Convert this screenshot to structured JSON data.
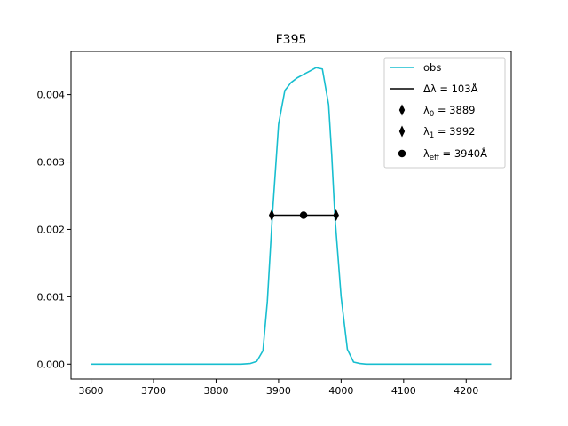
{
  "chart_data": {
    "type": "line",
    "title": "F395",
    "xlabel": "",
    "ylabel": "",
    "xlim": [
      3568,
      4272
    ],
    "ylim": [
      -0.00022,
      0.00464
    ],
    "grid": false,
    "legend_position": "top-right",
    "x_ticks": [
      3600,
      3700,
      3800,
      3900,
      4000,
      4100,
      4200
    ],
    "x_tick_labels": [
      "3600",
      "3700",
      "3800",
      "3900",
      "4000",
      "4100",
      "4200"
    ],
    "y_ticks": [
      0.0,
      0.001,
      0.002,
      0.003,
      0.004
    ],
    "y_tick_labels": [
      "0.000",
      "0.001",
      "0.002",
      "0.003",
      "0.004"
    ],
    "series": [
      {
        "name": "obs",
        "kind": "line",
        "color": "#17becf",
        "x": [
          3600,
          3650,
          3700,
          3750,
          3800,
          3840,
          3855,
          3865,
          3875,
          3882,
          3890,
          3900,
          3910,
          3920,
          3930,
          3940,
          3950,
          3960,
          3970,
          3980,
          3985,
          3990,
          3995,
          4000,
          4010,
          4020,
          4030,
          4040,
          4100,
          4200,
          4240
        ],
        "y": [
          0.0,
          0.0,
          0.0,
          0.0,
          0.0,
          0.0,
          1e-05,
          4e-05,
          0.0002,
          0.00093,
          0.0022,
          0.00356,
          0.00406,
          0.00418,
          0.00425,
          0.0043,
          0.00435,
          0.0044,
          0.00438,
          0.00385,
          0.0031,
          0.0022,
          0.0016,
          0.001,
          0.00022,
          3e-05,
          1e-05,
          0.0,
          0.0,
          0.0,
          0.0
        ]
      },
      {
        "name": "Δλ = 103Å",
        "kind": "line",
        "color": "#000000",
        "x": [
          3889,
          3992
        ],
        "y": [
          0.00221,
          0.00221
        ]
      },
      {
        "name": "λ0 = 3889",
        "kind": "marker",
        "marker": "thin_diamond",
        "color": "#000000",
        "x": [
          3889
        ],
        "y": [
          0.00221
        ]
      },
      {
        "name": "λ1 = 3992",
        "kind": "marker",
        "marker": "thin_diamond",
        "color": "#000000",
        "x": [
          3992
        ],
        "y": [
          0.00221
        ]
      },
      {
        "name": "λeff = 3940Å",
        "kind": "marker",
        "marker": "circle",
        "color": "#000000",
        "x": [
          3940
        ],
        "y": [
          0.00221
        ]
      }
    ],
    "legend": [
      {
        "label": "obs",
        "symbol": "line",
        "color": "#17becf"
      },
      {
        "label": "Δλ = 103Å",
        "symbol": "line",
        "color": "#000000"
      },
      {
        "label": "λ0 = 3889",
        "symbol": "thin_diamond",
        "color": "#000000"
      },
      {
        "label": "λ1 = 3992",
        "symbol": "thin_diamond",
        "color": "#000000"
      },
      {
        "label": "λeff = 3940Å",
        "symbol": "circle",
        "color": "#000000"
      }
    ]
  }
}
